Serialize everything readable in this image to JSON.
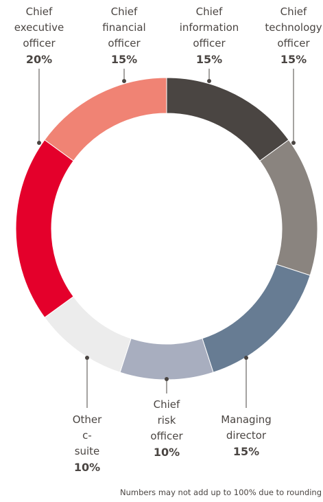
{
  "chart_data": {
    "type": "donut",
    "categories": [
      "Chief information officer",
      "Chief technology officer",
      "Managing director",
      "Chief risk officer",
      "Other c-suite",
      "Chief executive officer",
      "Chief financial officer"
    ],
    "values": [
      15,
      15,
      15,
      10,
      10,
      20,
      15
    ],
    "value_labels": [
      "15%",
      "15%",
      "15%",
      "10%",
      "10%",
      "20%",
      "15%"
    ],
    "colors": [
      "#4a4542",
      "#8a847f",
      "#677c93",
      "#a8aebf",
      "#ececec",
      "#e4002b",
      "#f08374"
    ],
    "footnote": "Numbers may not add up to 100% due to rounding"
  }
}
